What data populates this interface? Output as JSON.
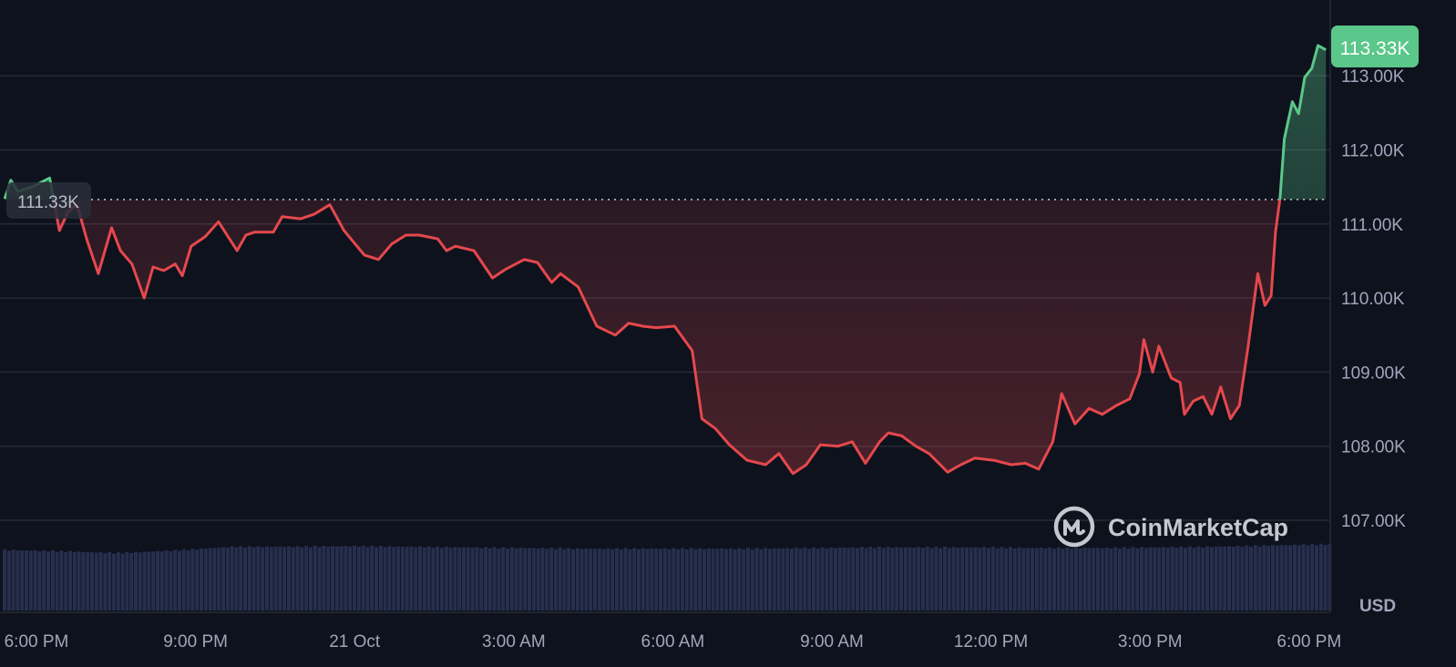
{
  "chart_data": {
    "type": "area",
    "title": "",
    "currency_label": "USD",
    "watermark": "CoinMarketCap",
    "baseline_value": 111330,
    "baseline_label": "111.33K",
    "current_value": 113330,
    "current_label": "113.33K",
    "ylim": [
      106600,
      113700
    ],
    "y_ticks": [
      {
        "value": 107000,
        "label": "107.00K"
      },
      {
        "value": 108000,
        "label": "108.00K"
      },
      {
        "value": 109000,
        "label": "109.00K"
      },
      {
        "value": 110000,
        "label": "110.00K"
      },
      {
        "value": 111000,
        "label": "111.00K"
      },
      {
        "value": 112000,
        "label": "112.00K"
      },
      {
        "value": 113000,
        "label": "113.00K"
      }
    ],
    "x_ticks": [
      {
        "time": "20 Oct 18:00",
        "label": "6:00 PM"
      },
      {
        "time": "20 Oct 21:00",
        "label": "9:00 PM"
      },
      {
        "time": "21 Oct 00:00",
        "label": "21 Oct"
      },
      {
        "time": "21 Oct 03:00",
        "label": "3:00 AM"
      },
      {
        "time": "21 Oct 06:00",
        "label": "6:00 AM"
      },
      {
        "time": "21 Oct 09:00",
        "label": "9:00 AM"
      },
      {
        "time": "21 Oct 12:00",
        "label": "12:00 PM"
      },
      {
        "time": "21 Oct 15:00",
        "label": "3:00 PM"
      },
      {
        "time": "21 Oct 18:00",
        "label": "6:00 PM"
      }
    ],
    "grid": true,
    "colors": {
      "up": "#5bc78a",
      "down": "#e5484d",
      "volume": "#262f4d",
      "background": "#0d121d",
      "grid": "#262a35"
    },
    "series": [
      {
        "points": [
          [
            "20 Oct 17:24",
            111340
          ],
          [
            "20 Oct 17:31",
            111590
          ],
          [
            "20 Oct 17:39",
            111440
          ],
          [
            "20 Oct 17:55",
            111500
          ],
          [
            "20 Oct 18:15",
            111620
          ],
          [
            "20 Oct 18:26",
            110910
          ],
          [
            "20 Oct 18:36",
            111170
          ],
          [
            "20 Oct 18:46",
            111260
          ],
          [
            "20 Oct 18:57",
            110790
          ],
          [
            "20 Oct 19:10",
            110330
          ],
          [
            "20 Oct 19:25",
            110950
          ],
          [
            "20 Oct 19:35",
            110640
          ],
          [
            "20 Oct 19:48",
            110460
          ],
          [
            "20 Oct 20:02",
            110000
          ],
          [
            "20 Oct 20:12",
            110420
          ],
          [
            "20 Oct 20:24",
            110370
          ],
          [
            "20 Oct 20:37",
            110460
          ],
          [
            "20 Oct 20:45",
            110300
          ],
          [
            "20 Oct 20:55",
            110700
          ],
          [
            "20 Oct 21:11",
            110830
          ],
          [
            "20 Oct 21:26",
            111030
          ],
          [
            "20 Oct 21:47",
            110640
          ],
          [
            "20 Oct 21:57",
            110850
          ],
          [
            "20 Oct 22:07",
            110890
          ],
          [
            "20 Oct 22:28",
            110890
          ],
          [
            "20 Oct 22:38",
            111100
          ],
          [
            "20 Oct 22:59",
            111070
          ],
          [
            "20 Oct 23:14",
            111130
          ],
          [
            "20 Oct 23:32",
            111260
          ],
          [
            "20 Oct 23:48",
            110910
          ],
          [
            "21 Oct 00:11",
            110580
          ],
          [
            "21 Oct 00:27",
            110520
          ],
          [
            "21 Oct 00:42",
            110730
          ],
          [
            "21 Oct 00:58",
            110850
          ],
          [
            "21 Oct 01:13",
            110850
          ],
          [
            "21 Oct 01:34",
            110800
          ],
          [
            "21 Oct 01:44",
            110640
          ],
          [
            "21 Oct 01:54",
            110700
          ],
          [
            "21 Oct 02:15",
            110640
          ],
          [
            "21 Oct 02:36",
            110270
          ],
          [
            "21 Oct 02:51",
            110390
          ],
          [
            "21 Oct 03:12",
            110520
          ],
          [
            "21 Oct 03:27",
            110480
          ],
          [
            "21 Oct 03:43",
            110210
          ],
          [
            "21 Oct 03:53",
            110330
          ],
          [
            "21 Oct 04:13",
            110150
          ],
          [
            "21 Oct 04:34",
            109620
          ],
          [
            "21 Oct 04:55",
            109500
          ],
          [
            "21 Oct 05:10",
            109660
          ],
          [
            "21 Oct 05:26",
            109620
          ],
          [
            "21 Oct 05:41",
            109600
          ],
          [
            "21 Oct 06:02",
            109620
          ],
          [
            "21 Oct 06:22",
            109290
          ],
          [
            "21 Oct 06:33",
            108370
          ],
          [
            "21 Oct 06:48",
            108240
          ],
          [
            "21 Oct 07:04",
            108020
          ],
          [
            "21 Oct 07:24",
            107810
          ],
          [
            "21 Oct 07:45",
            107750
          ],
          [
            "21 Oct 08:00",
            107900
          ],
          [
            "21 Oct 08:16",
            107630
          ],
          [
            "21 Oct 08:31",
            107750
          ],
          [
            "21 Oct 08:47",
            108020
          ],
          [
            "21 Oct 09:07",
            108000
          ],
          [
            "21 Oct 09:23",
            108060
          ],
          [
            "21 Oct 09:38",
            107770
          ],
          [
            "21 Oct 09:54",
            108060
          ],
          [
            "21 Oct 10:04",
            108180
          ],
          [
            "21 Oct 10:19",
            108140
          ],
          [
            "21 Oct 10:35",
            108000
          ],
          [
            "21 Oct 10:50",
            107900
          ],
          [
            "21 Oct 11:11",
            107650
          ],
          [
            "21 Oct 11:26",
            107750
          ],
          [
            "21 Oct 11:42",
            107840
          ],
          [
            "21 Oct 12:03",
            107810
          ],
          [
            "21 Oct 12:23",
            107750
          ],
          [
            "21 Oct 12:39",
            107770
          ],
          [
            "21 Oct 12:54",
            107690
          ],
          [
            "21 Oct 13:10",
            108060
          ],
          [
            "21 Oct 13:20",
            108710
          ],
          [
            "21 Oct 13:35",
            108300
          ],
          [
            "21 Oct 13:51",
            108510
          ],
          [
            "21 Oct 14:06",
            108430
          ],
          [
            "21 Oct 14:22",
            108550
          ],
          [
            "21 Oct 14:37",
            108640
          ],
          [
            "21 Oct 14:48",
            108980
          ],
          [
            "21 Oct 14:53",
            109440
          ],
          [
            "21 Oct 15:03",
            109000
          ],
          [
            "21 Oct 15:10",
            109350
          ],
          [
            "21 Oct 15:24",
            108920
          ],
          [
            "21 Oct 15:34",
            108860
          ],
          [
            "21 Oct 15:39",
            108430
          ],
          [
            "21 Oct 15:49",
            108610
          ],
          [
            "21 Oct 16:00",
            108670
          ],
          [
            "21 Oct 16:10",
            108430
          ],
          [
            "21 Oct 16:20",
            108800
          ],
          [
            "21 Oct 16:31",
            108370
          ],
          [
            "21 Oct 16:41",
            108550
          ],
          [
            "21 Oct 16:51",
            109350
          ],
          [
            "21 Oct 17:02",
            110330
          ],
          [
            "21 Oct 17:10",
            109900
          ],
          [
            "21 Oct 17:17",
            110030
          ],
          [
            "21 Oct 17:22",
            110890
          ],
          [
            "21 Oct 17:27",
            111340
          ],
          [
            "21 Oct 17:32",
            112150
          ],
          [
            "21 Oct 17:41",
            112650
          ],
          [
            "21 Oct 17:48",
            112490
          ],
          [
            "21 Oct 17:55",
            112980
          ],
          [
            "21 Oct 18:03",
            113100
          ],
          [
            "21 Oct 18:10",
            113410
          ],
          [
            "21 Oct 18:19",
            113350
          ]
        ]
      }
    ],
    "volume_relative": [
      0.95,
      0.93,
      0.9,
      0.94,
      1.0,
      1.0,
      1.01,
      1.0,
      0.99,
      0.98,
      0.97,
      0.97,
      0.97,
      0.97,
      0.98,
      0.99,
      0.99,
      0.99,
      0.98,
      0.98,
      0.99,
      1.0,
      1.02,
      1.04
    ]
  }
}
